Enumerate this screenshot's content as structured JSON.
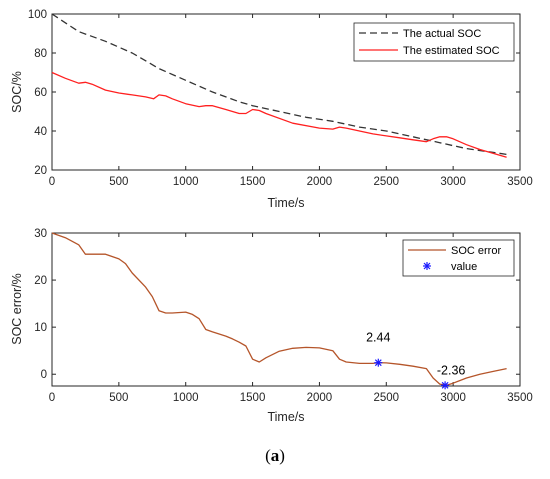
{
  "figure": {
    "caption_open": "(",
    "caption_letter": "a",
    "caption_close": ")"
  },
  "chart_data": [
    {
      "type": "line",
      "xlabel": "Time/s",
      "ylabel": "SOC/%",
      "xlim": [
        0,
        3500
      ],
      "ylim": [
        20,
        100
      ],
      "xticks": [
        0,
        500,
        1000,
        1500,
        2000,
        2500,
        3000,
        3500
      ],
      "yticks": [
        20,
        40,
        60,
        80,
        100
      ],
      "legend_position": "top-right",
      "grid": false,
      "series": [
        {
          "name": "The actual SOC",
          "color": "#333333",
          "style": "dashed",
          "x": [
            0,
            200,
            400,
            600,
            800,
            1000,
            1200,
            1400,
            1500,
            1700,
            1900,
            2100,
            2300,
            2500,
            2700,
            2900,
            3100,
            3300,
            3400
          ],
          "y": [
            100,
            91,
            86,
            80,
            72,
            66,
            60,
            55,
            53,
            50,
            47,
            45,
            42,
            40,
            37,
            34,
            31,
            29,
            28
          ]
        },
        {
          "name": "The estimated SOC",
          "color": "#ff2020",
          "style": "solid",
          "x": [
            0,
            100,
            200,
            250,
            300,
            400,
            500,
            600,
            700,
            760,
            800,
            850,
            900,
            1000,
            1100,
            1150,
            1200,
            1300,
            1400,
            1450,
            1500,
            1550,
            1600,
            1800,
            2000,
            2100,
            2150,
            2200,
            2300,
            2400,
            2500,
            2600,
            2700,
            2800,
            2850,
            2900,
            2950,
            3000,
            3100,
            3200,
            3300,
            3400
          ],
          "y": [
            70,
            67,
            64.5,
            65,
            64,
            61,
            59.5,
            58.5,
            57.5,
            56.5,
            58.5,
            58,
            56.5,
            54,
            52.5,
            53,
            53,
            51,
            49,
            49,
            51,
            50.5,
            49,
            44,
            41.5,
            41,
            42,
            41.5,
            40,
            38.5,
            37.5,
            36.5,
            35.5,
            34.5,
            36,
            37,
            37,
            36,
            33,
            30.5,
            28.5,
            26.5
          ]
        }
      ]
    },
    {
      "type": "line",
      "xlabel": "Time/s",
      "ylabel": "SOC error/%",
      "xlim": [
        0,
        3500
      ],
      "ylim": [
        -2.5,
        30
      ],
      "xticks": [
        0,
        500,
        1000,
        1500,
        2000,
        2500,
        3000,
        3500
      ],
      "yticks": [
        0,
        10,
        20,
        30
      ],
      "legend_position": "top-right",
      "grid": false,
      "series": [
        {
          "name": "SOC error",
          "color": "#b5552a",
          "style": "solid",
          "x": [
            0,
            100,
            200,
            250,
            300,
            400,
            500,
            550,
            600,
            700,
            750,
            800,
            850,
            900,
            1000,
            1050,
            1100,
            1150,
            1200,
            1300,
            1350,
            1400,
            1450,
            1500,
            1550,
            1600,
            1700,
            1800,
            1900,
            2000,
            2100,
            2150,
            2200,
            2300,
            2400,
            2440,
            2500,
            2600,
            2700,
            2800,
            2850,
            2900,
            2950,
            3000,
            3100,
            3200,
            3300,
            3400
          ],
          "y": [
            30,
            29,
            27.5,
            25.5,
            25.5,
            25.5,
            24.5,
            23.5,
            21.5,
            18.5,
            16.5,
            13.5,
            13,
            13,
            13.2,
            12.7,
            11.8,
            9.5,
            9,
            8.1,
            7.5,
            6.8,
            6,
            3.2,
            2.6,
            3.5,
            4.9,
            5.5,
            5.7,
            5.6,
            5,
            3.2,
            2.6,
            2.3,
            2.3,
            2.44,
            2.4,
            2.1,
            1.7,
            1.2,
            -0.8,
            -2.1,
            -2.36,
            -1.9,
            -0.8,
            0,
            0.6,
            1.2
          ]
        },
        {
          "name": "value",
          "color": "#1a1aff",
          "style": "marker",
          "marker": "asterisk",
          "points": [
            {
              "x": 2440,
              "y": 2.44,
              "label": "2.44"
            },
            {
              "x": 2940,
              "y": -2.36,
              "label": "-2.36"
            }
          ]
        }
      ]
    }
  ]
}
